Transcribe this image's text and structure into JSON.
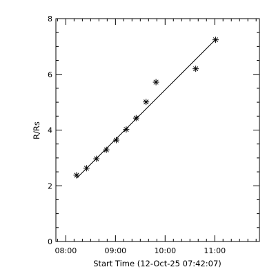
{
  "chart_data": {
    "type": "scatter",
    "title": "",
    "xlabel": "Start Time (12-Oct-25 07:42:07)",
    "ylabel": "R/Rs",
    "x_unit": "time of day",
    "xlim": [
      "07:48",
      "11:54"
    ],
    "ylim": [
      0,
      8
    ],
    "x_ticks": [
      "08:00",
      "09:00",
      "10:00",
      "11:00"
    ],
    "y_ticks": [
      "0",
      "2",
      "4",
      "6",
      "8"
    ],
    "grid": false,
    "legend": "none",
    "series": [
      {
        "marker": "asterisk",
        "points": [
          {
            "x": "08:13",
            "y": 2.38
          },
          {
            "x": "08:25",
            "y": 2.63
          },
          {
            "x": "08:37",
            "y": 2.97
          },
          {
            "x": "08:49",
            "y": 3.29
          },
          {
            "x": "09:01",
            "y": 3.64
          },
          {
            "x": "09:13",
            "y": 4.02
          },
          {
            "x": "09:25",
            "y": 4.43
          },
          {
            "x": "09:37",
            "y": 5.01
          },
          {
            "x": "09:49",
            "y": 5.72
          },
          {
            "x": "10:37",
            "y": 6.2
          },
          {
            "x": "11:01",
            "y": 7.24
          }
        ]
      }
    ],
    "fit_line": {
      "type": "linear",
      "points": [
        {
          "x": "08:13",
          "y": 2.27
        },
        {
          "x": "11:01",
          "y": 7.25
        }
      ]
    },
    "colors": {
      "foreground": "#000000",
      "background": "#ffffff"
    }
  }
}
